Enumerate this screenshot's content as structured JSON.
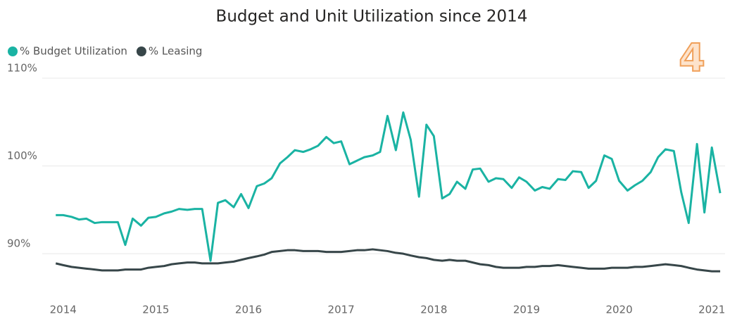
{
  "chart_data": {
    "type": "line",
    "title": "Budget and Unit Utilization since 2014",
    "annotation": "4",
    "legend": "top-left",
    "grid": true,
    "x": [
      2013.92,
      2014.0,
      2014.09,
      2014.17,
      2014.25,
      2014.34,
      2014.42,
      2014.5,
      2014.59,
      2014.67,
      2014.75,
      2014.84,
      2014.92,
      2015.0,
      2015.09,
      2015.17,
      2015.25,
      2015.34,
      2015.42,
      2015.5,
      2015.59,
      2015.67,
      2015.75,
      2015.84,
      2015.92,
      2016.0,
      2016.09,
      2016.17,
      2016.25,
      2016.34,
      2016.42,
      2016.5,
      2016.59,
      2016.67,
      2016.75,
      2016.84,
      2016.92,
      2017.0,
      2017.09,
      2017.17,
      2017.25,
      2017.34,
      2017.42,
      2017.5,
      2017.59,
      2017.67,
      2017.75,
      2017.84,
      2017.92,
      2018.0,
      2018.09,
      2018.17,
      2018.25,
      2018.34,
      2018.42,
      2018.5,
      2018.59,
      2018.67,
      2018.75,
      2018.84,
      2018.92,
      2019.0,
      2019.09,
      2019.17,
      2019.25,
      2019.34,
      2019.42,
      2019.5,
      2019.59,
      2019.67,
      2019.75,
      2019.84,
      2019.92,
      2020.0,
      2020.09,
      2020.17,
      2020.25,
      2020.34,
      2020.42,
      2020.5,
      2020.59,
      2020.67,
      2020.75,
      2020.84,
      2020.92,
      2021.0,
      2021.09
    ],
    "series": [
      {
        "name": "% Budget Utilization",
        "color": "#1ab3a3",
        "values": [
          94.4,
          94.4,
          94.2,
          93.9,
          94.0,
          93.5,
          93.6,
          93.6,
          93.6,
          91.0,
          94.0,
          93.2,
          94.1,
          94.2,
          94.6,
          94.8,
          95.1,
          95.0,
          95.1,
          95.1,
          89.2,
          95.8,
          96.1,
          95.3,
          96.8,
          95.2,
          97.7,
          98.0,
          98.6,
          100.3,
          101.0,
          101.8,
          101.6,
          101.9,
          102.3,
          103.3,
          102.6,
          102.8,
          100.2,
          100.6,
          101.0,
          101.2,
          101.6,
          105.7,
          101.8,
          106.1,
          103.0,
          96.5,
          104.7,
          103.4,
          96.3,
          96.8,
          98.2,
          97.4,
          99.6,
          99.7,
          98.2,
          98.6,
          98.5,
          97.5,
          98.7,
          98.2,
          97.2,
          97.6,
          97.4,
          98.5,
          98.4,
          99.4,
          99.3,
          97.5,
          98.3,
          101.2,
          100.8,
          98.3,
          97.2,
          97.8,
          98.3,
          99.3,
          101.0,
          101.9,
          101.7,
          97.0,
          93.5,
          102.5,
          94.7,
          102.1,
          96.9
        ]
      },
      {
        "name": "% Leasing",
        "color": "#374649",
        "values": [
          88.9,
          88.7,
          88.5,
          88.4,
          88.3,
          88.2,
          88.1,
          88.1,
          88.1,
          88.2,
          88.2,
          88.2,
          88.4,
          88.5,
          88.6,
          88.8,
          88.9,
          89.0,
          89.0,
          88.9,
          88.9,
          88.9,
          89.0,
          89.1,
          89.3,
          89.5,
          89.7,
          89.9,
          90.2,
          90.3,
          90.4,
          90.4,
          90.3,
          90.3,
          90.3,
          90.2,
          90.2,
          90.2,
          90.3,
          90.4,
          90.4,
          90.5,
          90.4,
          90.3,
          90.1,
          90.0,
          89.8,
          89.6,
          89.5,
          89.3,
          89.2,
          89.3,
          89.2,
          89.2,
          89.0,
          88.8,
          88.7,
          88.5,
          88.4,
          88.4,
          88.4,
          88.5,
          88.5,
          88.6,
          88.6,
          88.7,
          88.6,
          88.5,
          88.4,
          88.3,
          88.3,
          88.3,
          88.4,
          88.4,
          88.4,
          88.5,
          88.5,
          88.6,
          88.7,
          88.8,
          88.7,
          88.6,
          88.4,
          88.2,
          88.1,
          88.0,
          88.0
        ]
      }
    ],
    "xlim": [
      2013.85,
      2021.12
    ],
    "xticks": [
      2014,
      2015,
      2016,
      2017,
      2018,
      2019,
      2020,
      2021
    ],
    "ylim": [
      86,
      110
    ],
    "yticks": [
      {
        "value": 90,
        "label": "90%"
      },
      {
        "value": 100,
        "label": "100%"
      },
      {
        "value": 110,
        "label": "110%"
      }
    ]
  }
}
